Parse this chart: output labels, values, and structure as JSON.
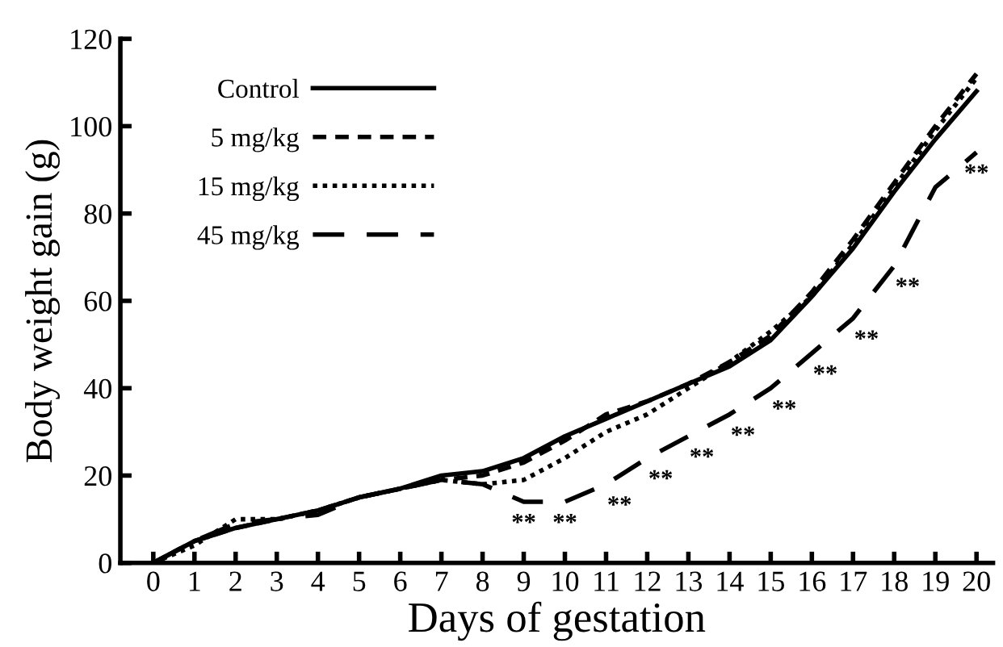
{
  "chart_data": {
    "type": "line",
    "xlabel": "Days of gestation",
    "ylabel": "Body weight gain (g)",
    "x": [
      0,
      1,
      2,
      3,
      4,
      5,
      6,
      7,
      8,
      9,
      10,
      11,
      12,
      13,
      14,
      15,
      16,
      17,
      18,
      19,
      20
    ],
    "xlim": [
      -0.8,
      20.4
    ],
    "xticks": [
      0,
      1,
      2,
      3,
      4,
      5,
      6,
      7,
      8,
      9,
      10,
      11,
      12,
      13,
      14,
      15,
      16,
      17,
      18,
      19,
      20
    ],
    "ylim": [
      0,
      120
    ],
    "yticks": [
      0,
      20,
      40,
      60,
      80,
      100,
      120
    ],
    "grid": false,
    "legend": "top left",
    "marker": "none",
    "series": [
      {
        "name": "Control",
        "color": "#000000",
        "line_style": "solid",
        "values": [
          0,
          5,
          8,
          10,
          12,
          15,
          17,
          20,
          21,
          24,
          29,
          33,
          37,
          41,
          45,
          51,
          61,
          72,
          85,
          97,
          108
        ]
      },
      {
        "name": "5 mg/kg",
        "color": "#000000",
        "line_style": "dashed",
        "values": [
          0,
          5,
          8,
          10,
          12,
          15,
          17,
          19,
          20,
          23,
          28,
          34,
          37,
          41,
          46,
          52,
          62,
          74,
          87,
          100,
          112
        ]
      },
      {
        "name": "15 mg/kg",
        "color": "#000000",
        "line_style": "dotted",
        "values": [
          0,
          4,
          10,
          10,
          12,
          15,
          17,
          19,
          18,
          19,
          24,
          30,
          34,
          40,
          46,
          53,
          61,
          73,
          86,
          99,
          111
        ]
      },
      {
        "name": "45 mg/kg",
        "color": "#000000",
        "line_style": "longdash",
        "values": [
          0,
          5,
          9,
          10,
          11,
          15,
          17,
          19,
          18,
          14,
          14,
          18,
          24,
          29,
          34,
          40,
          48,
          56,
          68,
          86,
          94
        ]
      }
    ],
    "annotations": [
      {
        "text": "**",
        "x": 9,
        "y": 14
      },
      {
        "text": "**",
        "x": 10,
        "y": 14
      },
      {
        "text": "**",
        "x": 11,
        "y": 18
      },
      {
        "text": "**",
        "x": 12,
        "y": 24
      },
      {
        "text": "**",
        "x": 13,
        "y": 29
      },
      {
        "text": "**",
        "x": 14,
        "y": 34
      },
      {
        "text": "**",
        "x": 15,
        "y": 40
      },
      {
        "text": "**",
        "x": 16,
        "y": 48
      },
      {
        "text": "**",
        "x": 17,
        "y": 56
      },
      {
        "text": "**",
        "x": 18,
        "y": 68
      },
      {
        "text": "**",
        "x": 20,
        "y": 94
      }
    ]
  }
}
